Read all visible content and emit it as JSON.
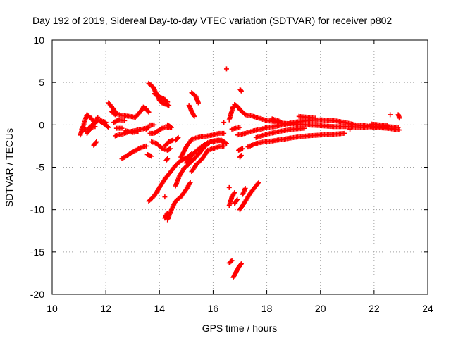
{
  "chart_data": {
    "type": "scatter",
    "title": "Day 192 of 2019, Sidereal Day-to-day VTEC variation (SDTVAR) for receiver p802",
    "xlabel": "GPS time / hours",
    "ylabel": "SDTVAR / TECUs",
    "xlim": [
      10,
      24
    ],
    "ylim": [
      -20,
      10
    ],
    "x_ticks": [
      10,
      12,
      14,
      16,
      18,
      20,
      22,
      24
    ],
    "y_ticks": [
      -20,
      -15,
      -10,
      -5,
      0,
      5,
      10
    ],
    "grid": true,
    "marker": "+",
    "series_color": "#ff0000",
    "segments": [
      [
        [
          11.05,
          -1.2
        ],
        [
          11.15,
          -0.2
        ],
        [
          11.3,
          1.2
        ],
        [
          11.45,
          0.8
        ],
        [
          11.6,
          0.2
        ],
        [
          11.7,
          0.9
        ]
      ],
      [
        [
          11.1,
          -0.5
        ],
        [
          11.3,
          -0.6
        ],
        [
          11.5,
          0.0
        ],
        [
          11.7,
          0.6
        ],
        [
          11.9,
          0.4
        ],
        [
          12.0,
          0.3
        ]
      ],
      [
        [
          11.3,
          -1.0
        ],
        [
          11.45,
          -0.3
        ],
        [
          11.6,
          -0.2
        ]
      ],
      [
        [
          11.55,
          -2.4
        ],
        [
          11.65,
          -2.0
        ]
      ],
      [
        [
          11.8,
          0.4
        ],
        [
          12.0,
          0.0
        ],
        [
          12.1,
          -0.3
        ]
      ],
      [
        [
          12.1,
          2.6
        ],
        [
          12.25,
          2.0
        ],
        [
          12.4,
          1.3
        ],
        [
          12.6,
          1.1
        ],
        [
          12.9,
          1.0
        ],
        [
          13.1,
          0.9
        ],
        [
          13.3,
          1.6
        ],
        [
          13.4,
          2.1
        ],
        [
          13.5,
          1.9
        ],
        [
          13.6,
          1.5
        ]
      ],
      [
        [
          12.2,
          1.6
        ],
        [
          12.35,
          1.2
        ]
      ],
      [
        [
          12.35,
          -1.3
        ],
        [
          12.6,
          -1.1
        ],
        [
          12.9,
          -0.8
        ],
        [
          13.2,
          -0.6
        ],
        [
          13.5,
          -0.4
        ]
      ],
      [
        [
          12.3,
          0.3
        ],
        [
          12.5,
          0.6
        ],
        [
          12.7,
          0.5
        ]
      ],
      [
        [
          12.4,
          -0.4
        ],
        [
          12.6,
          -0.4
        ]
      ],
      [
        [
          12.6,
          -4.0
        ],
        [
          12.8,
          -3.6
        ],
        [
          13.0,
          -3.2
        ],
        [
          13.3,
          -2.7
        ],
        [
          13.5,
          -2.5
        ]
      ],
      [
        [
          12.75,
          -0.7
        ],
        [
          13.0,
          -0.9
        ],
        [
          13.2,
          -0.8
        ]
      ],
      [
        [
          13.5,
          -0.5
        ],
        [
          13.6,
          -0.3
        ]
      ],
      [
        [
          13.65,
          0.0
        ],
        [
          13.8,
          0.0
        ]
      ],
      [
        [
          13.6,
          4.9
        ],
        [
          13.75,
          4.5
        ],
        [
          13.9,
          3.6
        ],
        [
          14.0,
          2.9
        ],
        [
          14.1,
          2.6
        ],
        [
          14.25,
          2.4
        ],
        [
          14.35,
          2.3
        ]
      ],
      [
        [
          13.8,
          3.7
        ],
        [
          14.0,
          3.3
        ],
        [
          14.2,
          3.0
        ],
        [
          14.3,
          2.7
        ]
      ],
      [
        [
          13.65,
          -1.0
        ],
        [
          13.8,
          -1.0
        ],
        [
          13.95,
          -0.7
        ],
        [
          14.1,
          -0.4
        ],
        [
          14.3,
          -0.3
        ],
        [
          14.45,
          -0.3
        ]
      ],
      [
        [
          13.7,
          -2.0
        ],
        [
          13.9,
          -2.2
        ],
        [
          14.1,
          -2.8
        ],
        [
          14.3,
          -3.0
        ],
        [
          14.4,
          -2.8
        ]
      ],
      [
        [
          13.55,
          -3.5
        ],
        [
          13.7,
          -3.7
        ]
      ],
      [
        [
          13.6,
          -9.0
        ],
        [
          13.8,
          -8.4
        ],
        [
          14.0,
          -7.4
        ],
        [
          14.2,
          -6.4
        ],
        [
          14.4,
          -5.6
        ],
        [
          14.6,
          -4.8
        ],
        [
          14.8,
          -4.2
        ],
        [
          15.0,
          -3.9
        ],
        [
          15.2,
          -3.4
        ]
      ],
      [
        [
          14.3,
          -11.2
        ],
        [
          14.45,
          -10.0
        ],
        [
          14.6,
          -9.0
        ],
        [
          14.8,
          -8.5
        ],
        [
          15.0,
          -7.6
        ],
        [
          15.15,
          -6.8
        ]
      ],
      [
        [
          14.2,
          -11.0
        ],
        [
          14.3,
          -10.4
        ]
      ],
      [
        [
          14.6,
          -7.2
        ],
        [
          14.75,
          -6.0
        ],
        [
          14.9,
          -5.2
        ],
        [
          15.1,
          -4.6
        ],
        [
          15.3,
          -4.0
        ],
        [
          15.5,
          -3.3
        ],
        [
          15.7,
          -2.5
        ],
        [
          15.9,
          -2.0
        ],
        [
          16.1,
          -1.9
        ],
        [
          16.3,
          -1.8
        ],
        [
          16.5,
          -2.2
        ]
      ],
      [
        [
          15.0,
          -4.5
        ],
        [
          15.2,
          -3.6
        ],
        [
          15.4,
          -3.0
        ],
        [
          15.6,
          -2.5
        ],
        [
          15.8,
          -2.1
        ],
        [
          16.0,
          -1.9
        ],
        [
          16.2,
          -1.8
        ],
        [
          16.4,
          -2.0
        ]
      ],
      [
        [
          15.1,
          2.3
        ],
        [
          15.2,
          1.6
        ],
        [
          15.3,
          1.0
        ]
      ],
      [
        [
          15.2,
          3.8
        ],
        [
          15.35,
          3.4
        ],
        [
          15.45,
          2.6
        ]
      ],
      [
        [
          14.8,
          -3.8
        ],
        [
          15.0,
          -2.6
        ],
        [
          15.2,
          -1.7
        ],
        [
          15.4,
          -1.5
        ],
        [
          15.6,
          -1.4
        ],
        [
          15.8,
          -1.3
        ],
        [
          16.0,
          -1.2
        ],
        [
          16.2,
          -1.0
        ],
        [
          16.4,
          -1.0
        ]
      ],
      [
        [
          15.2,
          -5.5
        ],
        [
          15.4,
          -4.6
        ],
        [
          15.6,
          -4.0
        ],
        [
          15.8,
          -3.0
        ],
        [
          16.0,
          -2.8
        ],
        [
          16.2,
          -2.6
        ],
        [
          16.4,
          -2.5
        ]
      ],
      [
        [
          14.2,
          -2.5
        ],
        [
          14.35,
          -2.0
        ],
        [
          14.5,
          -1.8
        ]
      ],
      [
        [
          14.3,
          0.0
        ],
        [
          14.4,
          -0.2
        ]
      ],
      [
        [
          14.6,
          -1.8
        ],
        [
          14.7,
          -1.5
        ]
      ],
      [
        [
          14.25,
          -4.2
        ],
        [
          14.3,
          -4.0
        ]
      ],
      [
        [
          14.2,
          -8.5
        ]
      ],
      [
        [
          16.5,
          6.6
        ]
      ],
      [
        [
          17.0,
          4.2
        ],
        [
          17.05,
          4.0
        ]
      ],
      [
        [
          16.4,
          0.3
        ]
      ],
      [
        [
          16.8,
          2.4
        ],
        [
          16.9,
          2.2
        ],
        [
          17.0,
          1.8
        ],
        [
          17.1,
          1.5
        ],
        [
          17.2,
          1.2
        ],
        [
          17.4,
          1.1
        ],
        [
          17.6,
          0.9
        ],
        [
          17.8,
          0.7
        ],
        [
          18.0,
          0.5
        ],
        [
          18.3,
          0.4
        ],
        [
          18.6,
          0.2
        ],
        [
          19.0,
          0.1
        ],
        [
          19.5,
          0.0
        ],
        [
          20.0,
          -0.1
        ],
        [
          20.5,
          -0.2
        ],
        [
          21.0,
          -0.2
        ],
        [
          21.5,
          -0.3
        ],
        [
          22.0,
          -0.2
        ],
        [
          22.5,
          -0.2
        ],
        [
          22.9,
          -0.3
        ]
      ],
      [
        [
          16.6,
          0.6
        ],
        [
          16.75,
          2.2
        ]
      ],
      [
        [
          16.7,
          -0.5
        ],
        [
          17.0,
          -0.3
        ]
      ],
      [
        [
          16.9,
          -1.2
        ],
        [
          17.2,
          -1.0
        ],
        [
          17.5,
          -0.7
        ],
        [
          17.8,
          -0.5
        ],
        [
          18.0,
          -0.3
        ],
        [
          18.3,
          -0.2
        ],
        [
          18.6,
          0.0
        ],
        [
          19.0,
          0.3
        ],
        [
          19.5,
          0.5
        ],
        [
          20.0,
          0.6
        ],
        [
          20.5,
          0.5
        ],
        [
          20.9,
          0.3
        ],
        [
          21.3,
          0.0
        ],
        [
          21.7,
          -0.1
        ],
        [
          22.0,
          -0.3
        ],
        [
          22.5,
          -0.4
        ],
        [
          22.95,
          -0.6
        ]
      ],
      [
        [
          16.95,
          -3.0
        ],
        [
          17.1,
          -2.8
        ]
      ],
      [
        [
          17.0,
          -3.8
        ],
        [
          17.05,
          -3.6
        ]
      ],
      [
        [
          17.3,
          -2.6
        ],
        [
          17.6,
          -2.2
        ],
        [
          17.9,
          -2.0
        ],
        [
          18.2,
          -1.9
        ],
        [
          18.6,
          -1.7
        ],
        [
          19.0,
          -1.5
        ],
        [
          19.5,
          -1.3
        ],
        [
          20.0,
          -1.2
        ],
        [
          20.5,
          -1.1
        ],
        [
          20.9,
          -1.0
        ]
      ],
      [
        [
          17.6,
          -1.5
        ],
        [
          17.8,
          -1.3
        ],
        [
          18.0,
          -1.1
        ],
        [
          18.3,
          -0.9
        ],
        [
          18.6,
          -0.7
        ],
        [
          19.0,
          -0.5
        ],
        [
          19.4,
          -0.4
        ]
      ],
      [
        [
          18.2,
          0.7
        ],
        [
          18.5,
          0.4
        ]
      ],
      [
        [
          19.2,
          1.0
        ],
        [
          19.5,
          0.9
        ],
        [
          19.8,
          0.8
        ]
      ],
      [
        [
          21.9,
          0.1
        ],
        [
          22.2,
          0.0
        ],
        [
          22.5,
          -0.1
        ]
      ],
      [
        [
          21.1,
          -0.5
        ]
      ],
      [
        [
          22.9,
          1.2
        ],
        [
          22.95,
          0.8
        ]
      ],
      [
        [
          22.6,
          1.2
        ]
      ],
      [
        [
          16.6,
          -7.4
        ]
      ],
      [
        [
          16.6,
          -9.5
        ],
        [
          16.7,
          -8.5
        ],
        [
          16.8,
          -8.0
        ]
      ],
      [
        [
          16.8,
          -9.3
        ],
        [
          16.9,
          -8.8
        ]
      ],
      [
        [
          17.0,
          -10.0
        ],
        [
          17.2,
          -9.0
        ],
        [
          17.4,
          -8.0
        ],
        [
          17.55,
          -7.4
        ],
        [
          17.7,
          -6.8
        ]
      ],
      [
        [
          17.1,
          -8.2
        ],
        [
          17.2,
          -7.5
        ]
      ],
      [
        [
          16.6,
          -16.3
        ],
        [
          16.7,
          -16.0
        ]
      ],
      [
        [
          16.75,
          -18.0
        ],
        [
          16.85,
          -17.4
        ],
        [
          16.95,
          -16.8
        ],
        [
          17.05,
          -16.4
        ]
      ]
    ]
  }
}
